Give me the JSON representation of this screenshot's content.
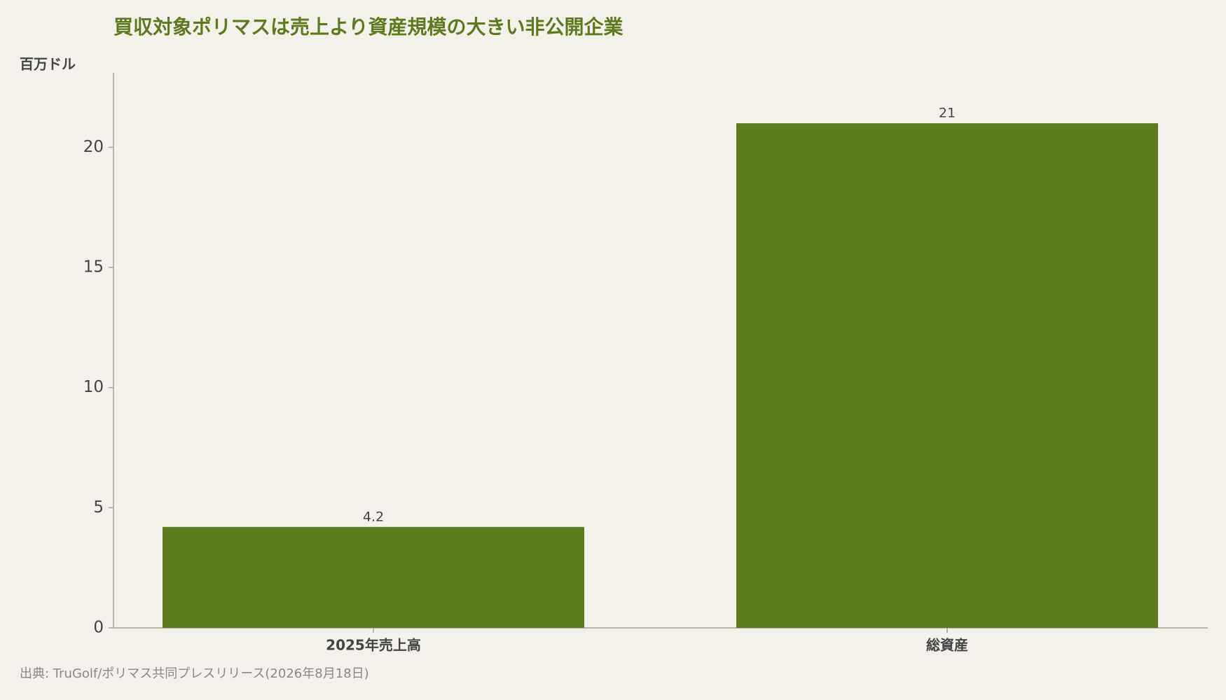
{
  "chart_data": {
    "type": "bar",
    "title": "買収対象ポリマスは売上より資産規模の大きい非公開企業",
    "y_label": "百万ドル",
    "source": "出典: TruGolf/ポリマス共同プレスリリース(2026年8月18日)",
    "categories": [
      "2025年売上高",
      "総資産"
    ],
    "values": [
      4.2,
      21
    ],
    "color": "#5d7a1f",
    "ylim": [
      0,
      23.1
    ],
    "yticks": [
      0,
      5,
      10,
      15,
      20
    ]
  }
}
